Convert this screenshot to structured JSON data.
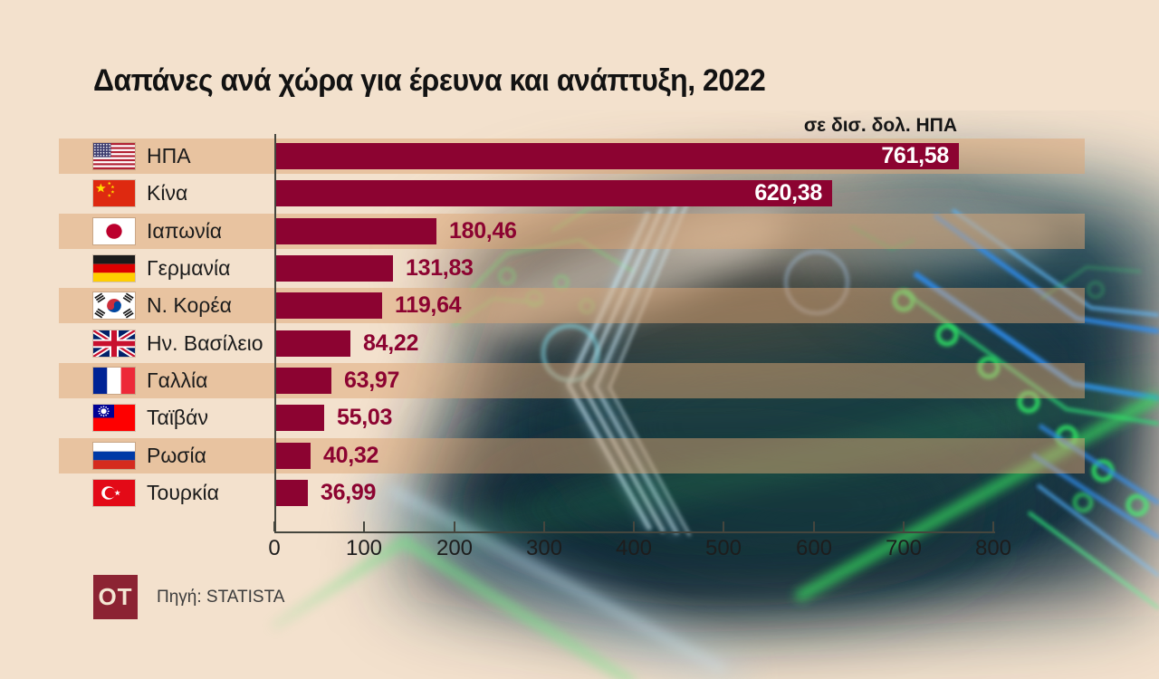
{
  "title": "Δαπάνες ανά χώρα για έρευνα και ανάπτυξη, 2022",
  "unit_label": "σε δισ. δολ. ΗΠΑ",
  "source": {
    "logo_text": "OT",
    "label": "Πηγή: STATISTA"
  },
  "colors": {
    "background": "#F3E1CD",
    "bar": "#8C0331",
    "row_stripe": "#E8C3A0",
    "value_inside": "#FFFFFF",
    "value_outside": "#8C0331",
    "axis": "#45463E",
    "title_text": "#121212",
    "logo_background": "#8C2333"
  },
  "chart_data": {
    "type": "bar",
    "orientation": "horizontal",
    "title": "Δαπάνες ανά χώρα για έρευνα και ανάπτυξη, 2022",
    "unit": "σε δισ. δολ. ΗΠΑ",
    "categories": [
      "ΗΠΑ",
      "Κίνα",
      "Ιαπωνία",
      "Γερμανία",
      "Ν. Κορέα",
      "Ην. Βασίλειο",
      "Γαλλία",
      "Ταϊβάν",
      "Ρωσία",
      "Τουρκία"
    ],
    "values": [
      761.58,
      620.38,
      180.46,
      131.83,
      119.64,
      84.22,
      63.97,
      55.03,
      40.32,
      36.99
    ],
    "value_labels": [
      "761,58",
      "620,38",
      "180,46",
      "131,83",
      "119,64",
      "84,22",
      "63,97",
      "55,03",
      "40,32",
      "36,99"
    ],
    "flags": [
      "us",
      "cn",
      "jp",
      "de",
      "kr",
      "gb",
      "fr",
      "tw",
      "ru",
      "tr"
    ],
    "flag_names": [
      "usa",
      "china",
      "japan",
      "germany",
      "south-korea",
      "united-kingdom",
      "france",
      "taiwan",
      "russia",
      "turkey"
    ],
    "xticks": [
      0,
      100,
      200,
      300,
      400,
      500,
      600,
      700,
      800
    ],
    "xlim": [
      0,
      800
    ],
    "grid": false,
    "legend": null,
    "source": "Πηγή: STATISTA"
  }
}
